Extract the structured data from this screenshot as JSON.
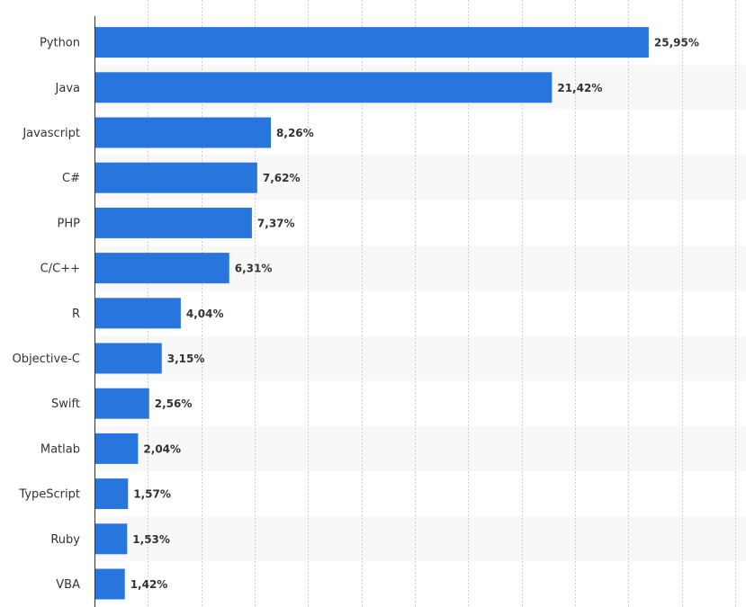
{
  "chart_data": {
    "type": "bar",
    "orientation": "horizontal",
    "title": "",
    "xlabel": "",
    "ylabel": "",
    "categories": [
      "Python",
      "Java",
      "Javascript",
      "C#",
      "PHP",
      "C/C++",
      "R",
      "Objective-C",
      "Swift",
      "Matlab",
      "TypeScript",
      "Ruby",
      "VBA"
    ],
    "values": [
      25.95,
      21.42,
      8.26,
      7.62,
      7.37,
      6.31,
      4.04,
      3.15,
      2.56,
      2.04,
      1.57,
      1.53,
      1.42
    ],
    "value_labels": [
      "25,95%",
      "21,42%",
      "8,26%",
      "7,62%",
      "7,37%",
      "6,31%",
      "4,04%",
      "3,15%",
      "2,56%",
      "2,04%",
      "1,57%",
      "1,53%",
      "1,42%"
    ],
    "xlim": [
      0,
      30
    ],
    "grid": true,
    "bar_color": "#2876dd",
    "alt_row_color": "#f8f8f8",
    "grid_color": "#cfcfcf"
  }
}
